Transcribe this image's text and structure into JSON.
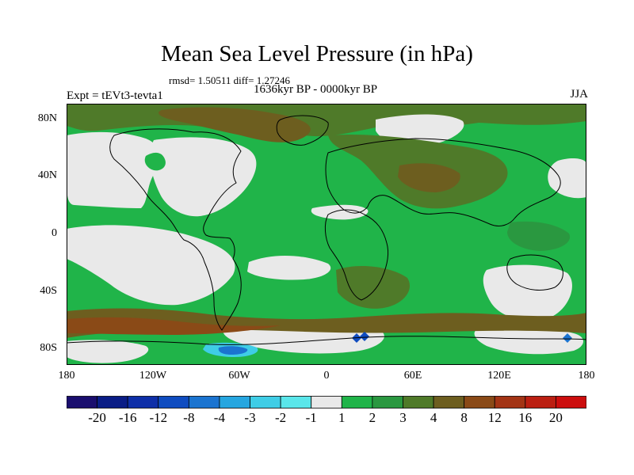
{
  "title": "Mean Sea Level Pressure (in hPa)",
  "stats": "rmsd= 1.50511 diff= 1.27246",
  "subtitle": "1636kyr BP - 0000kyr BP",
  "experiment": "Expt = tEVt3-tevta1",
  "season": "JJA",
  "map": {
    "projection": "cylindrical-equidistant",
    "background_level": "1 to 2",
    "lat_ticks": [
      "80N",
      "40N",
      "0",
      "40S",
      "80S"
    ],
    "lon_ticks": [
      "180",
      "120W",
      "60W",
      "0",
      "60E",
      "120E",
      "180"
    ]
  },
  "colorbar": {
    "labels": [
      "-20",
      "-16",
      "-12",
      "-8",
      "-4",
      "-3",
      "-2",
      "-1",
      "1",
      "2",
      "3",
      "4",
      "8",
      "12",
      "16",
      "20"
    ],
    "colors": [
      "#1a0e6e",
      "#0a1d86",
      "#0e2fa8",
      "#0f4cc0",
      "#1b74d0",
      "#26a6e0",
      "#3fcde6",
      "#5ae6ea",
      "#e9e9e9",
      "#20b449",
      "#2a9840",
      "#4f7a29",
      "#6d5e1f",
      "#8a4a17",
      "#a33415",
      "#bb1f12",
      "#cc0e0e"
    ]
  },
  "colors": {
    "light_gray": "#e9e9e9",
    "green": "#20b449",
    "dark_green": "#2a9840",
    "olive": "#4f7a29",
    "brown": "#6d5e1f",
    "blue": "#1b74d0",
    "cyan": "#3fcde6"
  }
}
